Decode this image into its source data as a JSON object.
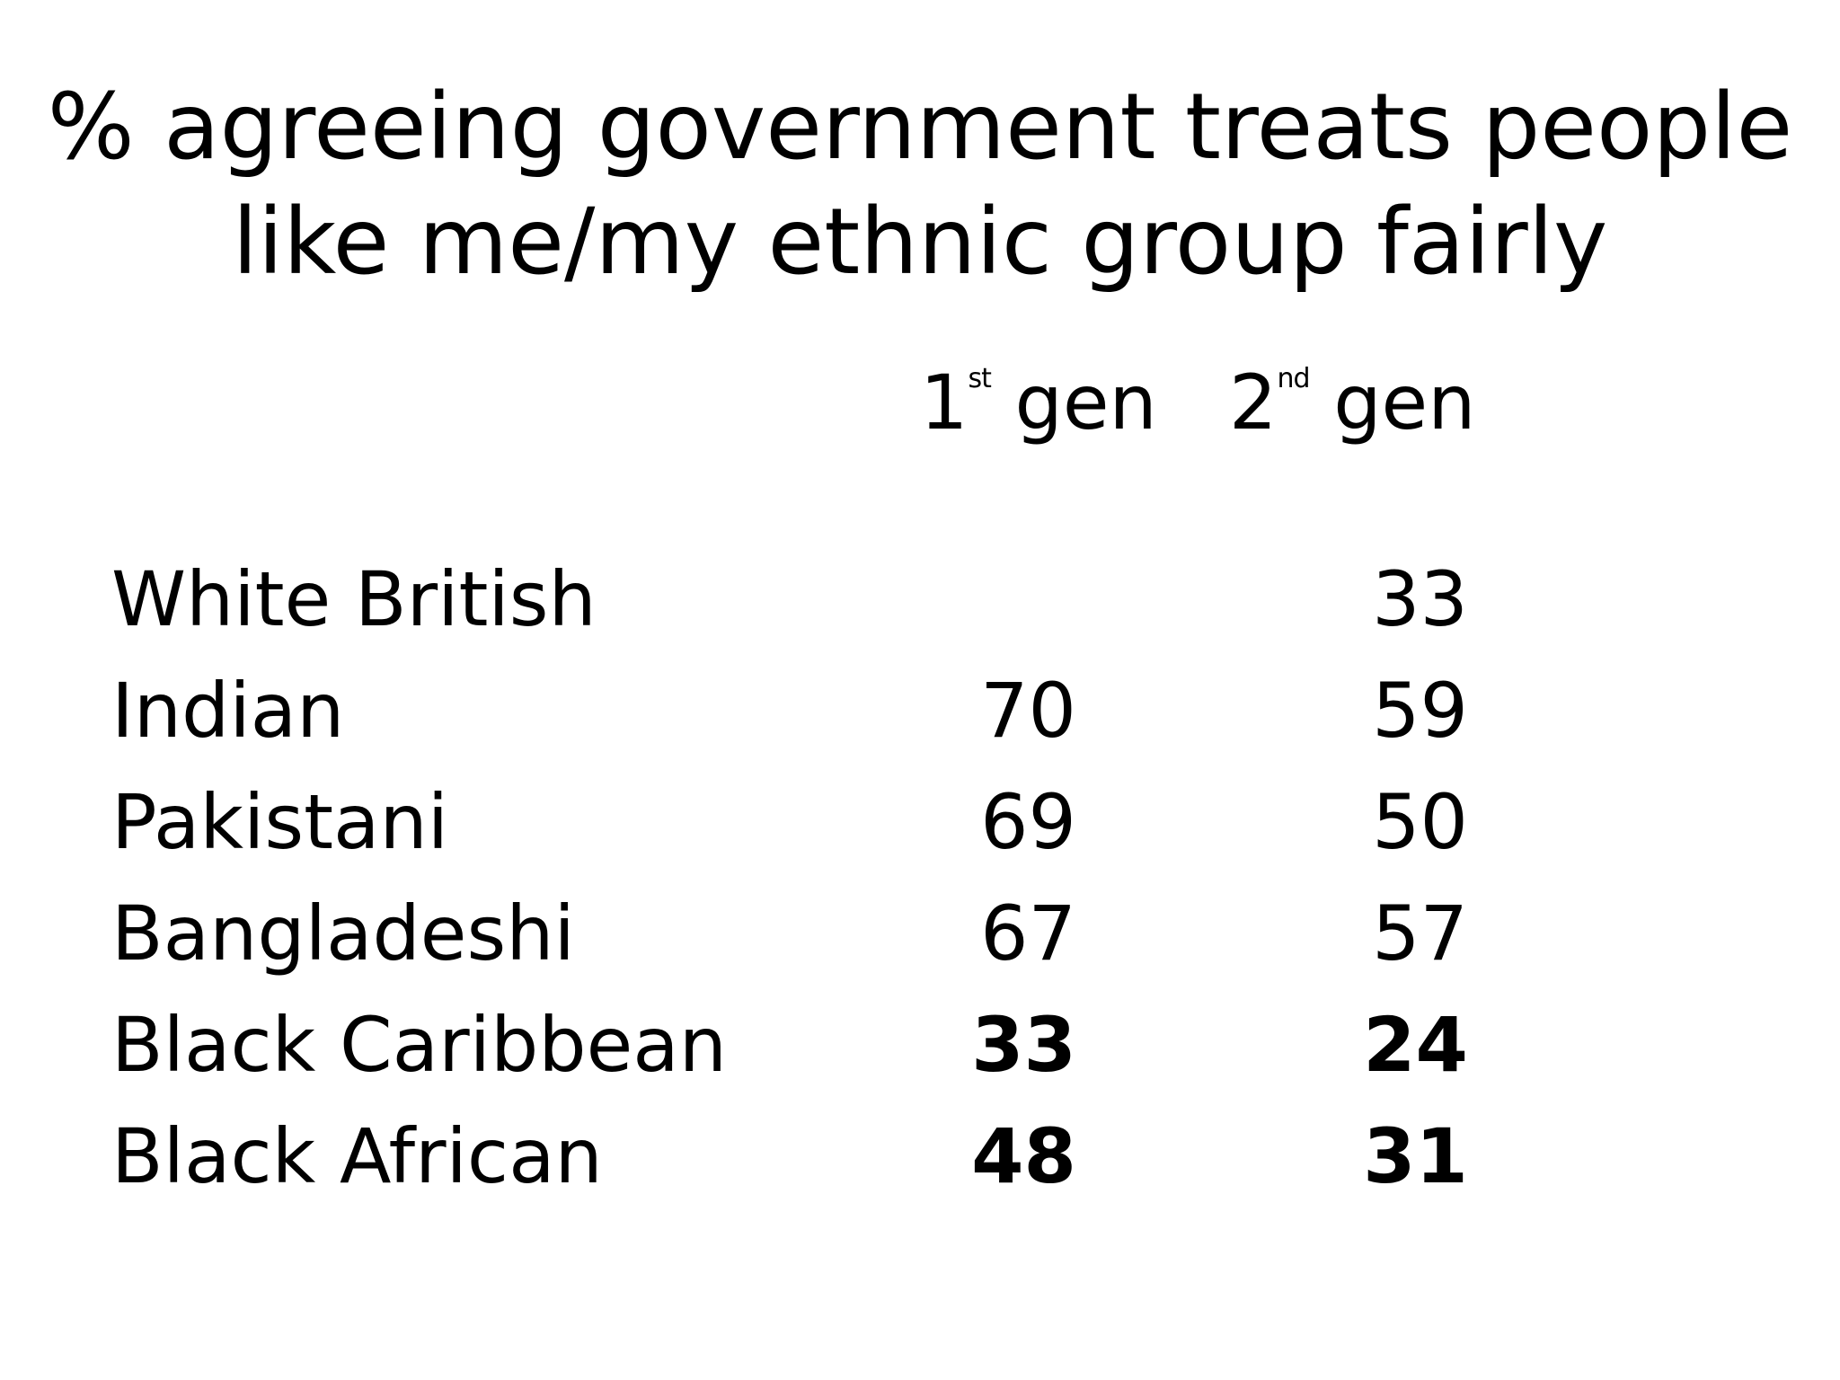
{
  "title": {
    "line1": "% agreeing government treats people",
    "line2": "like me/my ethnic group fairly"
  },
  "columns": {
    "gen1": {
      "number": "1",
      "suffix": "st",
      "label": " gen"
    },
    "gen2": {
      "number": "2",
      "suffix": "nd",
      "label": " gen"
    }
  },
  "chart_data": {
    "type": "table",
    "title": "% agreeing government treats people like me/my ethnic group fairly",
    "columns": [
      "1st gen",
      "2nd gen"
    ],
    "rows": [
      {
        "group": "White British",
        "gen1": "",
        "gen2": "33",
        "bold": false
      },
      {
        "group": "Indian",
        "gen1": "70",
        "gen2": "59",
        "bold": false
      },
      {
        "group": "Pakistani",
        "gen1": "69",
        "gen2": "50",
        "bold": false
      },
      {
        "group": "Bangladeshi",
        "gen1": "67",
        "gen2": "57",
        "bold": false
      },
      {
        "group": "Black Caribbean",
        "gen1": "33",
        "gen2": "24",
        "bold": true
      },
      {
        "group": "Black African",
        "gen1": "48",
        "gen2": "31",
        "bold": true
      }
    ]
  }
}
